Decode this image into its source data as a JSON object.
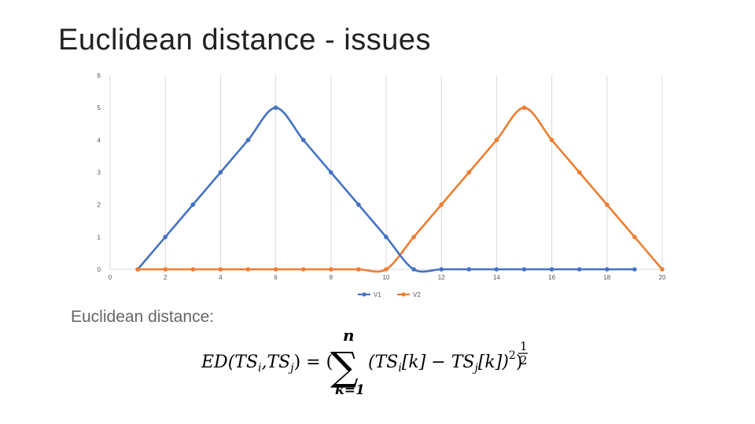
{
  "slide": {
    "title": "Euclidean distance - issues",
    "body_text": "Euclidean distance:"
  },
  "formula": {
    "lhs": "ED(TS",
    "sub_i": "i",
    "comma": ",TS",
    "sub_j": "j",
    "eq": ") = (",
    "upper": "n",
    "lower": "k=1",
    "sum": "∑",
    "term_open": "(TS",
    "term_idx1": "[k] − TS",
    "term_idx2": "[k])",
    "square": "2",
    "close": ")",
    "power_num": "1",
    "power_den": "2"
  },
  "chart_data": {
    "type": "line",
    "xlim": [
      0,
      20
    ],
    "ylim": [
      0,
      6
    ],
    "x_ticks": [
      0,
      2,
      4,
      6,
      8,
      10,
      12,
      14,
      16,
      18,
      20
    ],
    "y_ticks": [
      0,
      1,
      2,
      3,
      4,
      5,
      6
    ],
    "grid": "vertical",
    "legend_position": "bottom",
    "smooth": true,
    "series": [
      {
        "name": "V1",
        "color": "#4472C4",
        "x": [
          1,
          2,
          3,
          4,
          5,
          6,
          7,
          8,
          9,
          10,
          11,
          12,
          13,
          14,
          15,
          16,
          17,
          18,
          19
        ],
        "y": [
          0,
          1,
          2,
          3,
          4,
          5,
          4,
          3,
          2,
          1,
          0,
          0,
          0,
          0,
          0,
          0,
          0,
          0,
          0
        ]
      },
      {
        "name": "V2",
        "color": "#ED7D31",
        "x": [
          1,
          2,
          3,
          4,
          5,
          6,
          7,
          8,
          9,
          10,
          11,
          12,
          13,
          14,
          15,
          16,
          17,
          18,
          19,
          20
        ],
        "y": [
          0,
          0,
          0,
          0,
          0,
          0,
          0,
          0,
          0,
          0,
          1,
          2,
          3,
          4,
          5,
          4,
          3,
          2,
          1,
          0
        ]
      }
    ]
  }
}
